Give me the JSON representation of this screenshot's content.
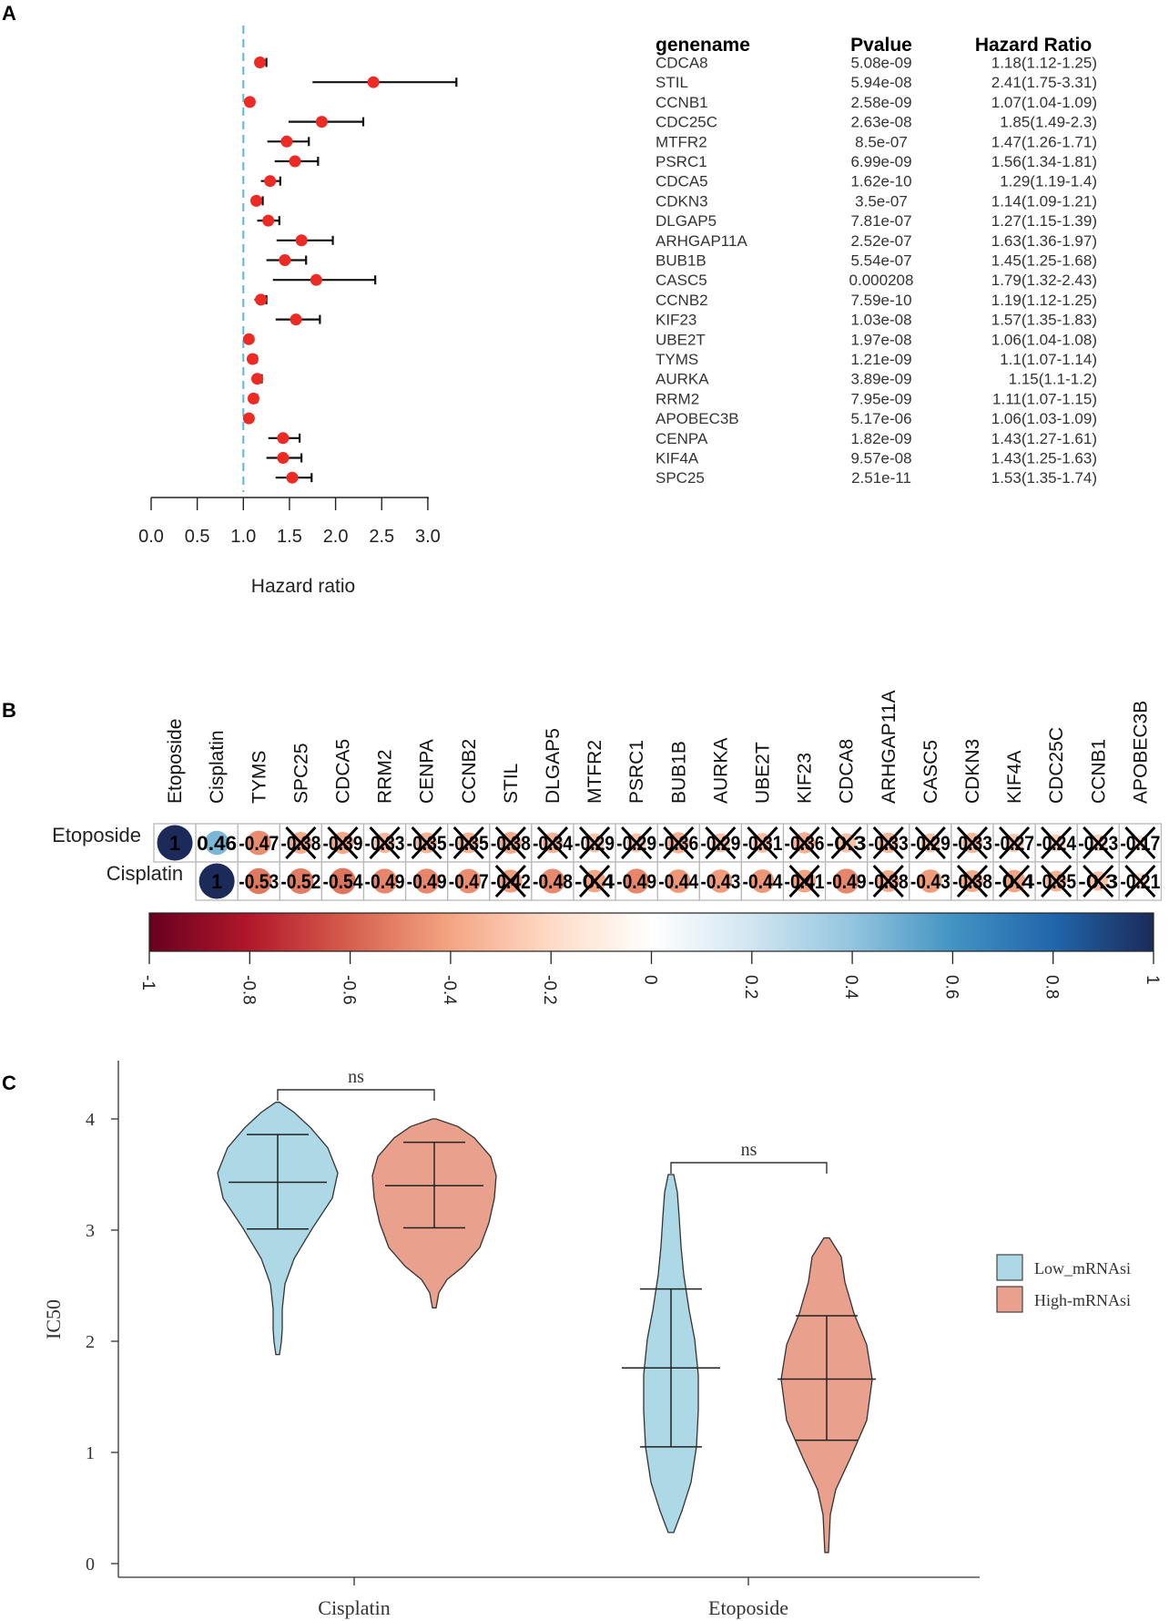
{
  "panel_labels": {
    "a": "A",
    "b": "B",
    "c": "C"
  },
  "chart_data": [
    {
      "type": "forest",
      "xlabel": "Hazard ratio",
      "xlim": [
        0,
        3
      ],
      "xticks": [
        "0.0",
        "0.5",
        "1.0",
        "1.5",
        "2.0",
        "2.5",
        "3.0"
      ],
      "reference_line": 1.0,
      "table_headers": {
        "gene": "genename",
        "p": "Pvalue",
        "hr": "Hazard Ratio"
      },
      "rows": [
        {
          "gene": "CDCA8",
          "p": "5.08e-09",
          "hr_text": "1.18(1.12-1.25)",
          "hr": 1.18,
          "lo": 1.12,
          "hi": 1.25
        },
        {
          "gene": "STIL",
          "p": "5.94e-08",
          "hr_text": "2.41(1.75-3.31)",
          "hr": 2.41,
          "lo": 1.75,
          "hi": 3.31
        },
        {
          "gene": "CCNB1",
          "p": "2.58e-09",
          "hr_text": "1.07(1.04-1.09)",
          "hr": 1.07,
          "lo": 1.04,
          "hi": 1.09
        },
        {
          "gene": "CDC25C",
          "p": "2.63e-08",
          "hr_text": "1.85(1.49-2.3)",
          "hr": 1.85,
          "lo": 1.49,
          "hi": 2.3
        },
        {
          "gene": "MTFR2",
          "p": "8.5e-07",
          "hr_text": "1.47(1.26-1.71)",
          "hr": 1.47,
          "lo": 1.26,
          "hi": 1.71
        },
        {
          "gene": "PSRC1",
          "p": "6.99e-09",
          "hr_text": "1.56(1.34-1.81)",
          "hr": 1.56,
          "lo": 1.34,
          "hi": 1.81
        },
        {
          "gene": "CDCA5",
          "p": "1.62e-10",
          "hr_text": "1.29(1.19-1.4)",
          "hr": 1.29,
          "lo": 1.19,
          "hi": 1.4
        },
        {
          "gene": "CDKN3",
          "p": "3.5e-07",
          "hr_text": "1.14(1.09-1.21)",
          "hr": 1.14,
          "lo": 1.09,
          "hi": 1.21
        },
        {
          "gene": "DLGAP5",
          "p": "7.81e-07",
          "hr_text": "1.27(1.15-1.39)",
          "hr": 1.27,
          "lo": 1.15,
          "hi": 1.39
        },
        {
          "gene": "ARHGAP11A",
          "p": "2.52e-07",
          "hr_text": "1.63(1.36-1.97)",
          "hr": 1.63,
          "lo": 1.36,
          "hi": 1.97
        },
        {
          "gene": "BUB1B",
          "p": "5.54e-07",
          "hr_text": "1.45(1.25-1.68)",
          "hr": 1.45,
          "lo": 1.25,
          "hi": 1.68
        },
        {
          "gene": "CASC5",
          "p": "0.000208",
          "hr_text": "1.79(1.32-2.43)",
          "hr": 1.79,
          "lo": 1.32,
          "hi": 2.43
        },
        {
          "gene": "CCNB2",
          "p": "7.59e-10",
          "hr_text": "1.19(1.12-1.25)",
          "hr": 1.19,
          "lo": 1.12,
          "hi": 1.25
        },
        {
          "gene": "KIF23",
          "p": "1.03e-08",
          "hr_text": "1.57(1.35-1.83)",
          "hr": 1.57,
          "lo": 1.35,
          "hi": 1.83
        },
        {
          "gene": "UBE2T",
          "p": "1.97e-08",
          "hr_text": "1.06(1.04-1.08)",
          "hr": 1.06,
          "lo": 1.04,
          "hi": 1.08
        },
        {
          "gene": "TYMS",
          "p": "1.21e-09",
          "hr_text": "1.1(1.07-1.14)",
          "hr": 1.1,
          "lo": 1.07,
          "hi": 1.14
        },
        {
          "gene": "AURKA",
          "p": "3.89e-09",
          "hr_text": "1.15(1.1-1.2)",
          "hr": 1.15,
          "lo": 1.1,
          "hi": 1.2
        },
        {
          "gene": "RRM2",
          "p": "7.95e-09",
          "hr_text": "1.11(1.07-1.15)",
          "hr": 1.11,
          "lo": 1.07,
          "hi": 1.15
        },
        {
          "gene": "APOBEC3B",
          "p": "5.17e-06",
          "hr_text": "1.06(1.03-1.09)",
          "hr": 1.06,
          "lo": 1.03,
          "hi": 1.09
        },
        {
          "gene": "CENPA",
          "p": "1.82e-09",
          "hr_text": "1.43(1.27-1.61)",
          "hr": 1.43,
          "lo": 1.27,
          "hi": 1.61
        },
        {
          "gene": "KIF4A",
          "p": "9.57e-08",
          "hr_text": "1.43(1.25-1.63)",
          "hr": 1.43,
          "lo": 1.25,
          "hi": 1.63
        },
        {
          "gene": "SPC25",
          "p": "2.51e-11",
          "hr_text": "1.53(1.35-1.74)",
          "hr": 1.53,
          "lo": 1.35,
          "hi": 1.74
        }
      ]
    },
    {
      "type": "heatmap",
      "columns": [
        "Etoposide",
        "Cisplatin",
        "TYMS",
        "SPC25",
        "CDCA5",
        "RRM2",
        "CENPA",
        "CCNB2",
        "STIL",
        "DLGAP5",
        "MTFR2",
        "PSRC1",
        "BUB1B",
        "AURKA",
        "UBE2T",
        "KIF23",
        "CDCA8",
        "ARHGAP11A",
        "CASC5",
        "CDKN3",
        "KIF4A",
        "CDC25C",
        "CCNB1",
        "APOBEC3B"
      ],
      "rows": [
        {
          "name": "Etoposide",
          "start_col": 0,
          "values": [
            1,
            0.46,
            -0.47,
            -0.38,
            -0.39,
            -0.33,
            -0.35,
            -0.35,
            -0.38,
            -0.34,
            -0.29,
            -0.29,
            -0.36,
            -0.29,
            -0.31,
            -0.36,
            -0.3,
            -0.33,
            -0.29,
            -0.33,
            -0.27,
            -0.24,
            -0.23,
            -0.17
          ],
          "labels": [
            "1",
            "0.46",
            "-0.47",
            "-0.38",
            "-0.39",
            "-0.33",
            "-0.35",
            "-0.35",
            "-0.38",
            "-0.34",
            "-0.29",
            "-0.29",
            "-0.36",
            "-0.29",
            "-0.31",
            "-0.36",
            "-0.3",
            "-0.33",
            "-0.29",
            "-0.33",
            "-0.27",
            "-0.24",
            "-0.23",
            "-0.17"
          ],
          "crossed": [
            false,
            false,
            false,
            true,
            true,
            true,
            true,
            true,
            true,
            true,
            true,
            true,
            true,
            true,
            true,
            true,
            true,
            true,
            true,
            true,
            true,
            true,
            true,
            true
          ]
        },
        {
          "name": "Cisplatin",
          "start_col": 1,
          "values": [
            1,
            -0.53,
            -0.52,
            -0.54,
            -0.49,
            -0.49,
            -0.47,
            -0.42,
            -0.48,
            -0.4,
            -0.49,
            -0.44,
            -0.43,
            -0.44,
            -0.41,
            -0.49,
            -0.38,
            -0.43,
            -0.38,
            -0.4,
            -0.35,
            -0.3,
            -0.21
          ],
          "labels": [
            "1",
            "-0.53",
            "-0.52",
            "-0.54",
            "-0.49",
            "-0.49",
            "-0.47",
            "-0.42",
            "-0.48",
            "-0.4",
            "-0.49",
            "-0.44",
            "-0.43",
            "-0.44",
            "-0.41",
            "-0.49",
            "-0.38",
            "-0.43",
            "-0.38",
            "-0.4",
            "-0.35",
            "-0.3",
            "-0.21"
          ],
          "crossed": [
            false,
            false,
            false,
            false,
            false,
            false,
            false,
            true,
            false,
            true,
            false,
            false,
            false,
            false,
            true,
            false,
            true,
            false,
            true,
            true,
            true,
            true,
            true
          ]
        }
      ],
      "colorbar": {
        "range": [
          -1,
          1
        ],
        "ticks": [
          "-1",
          "-0.8",
          "-0.6",
          "-0.4",
          "-0.2",
          "0",
          "0.2",
          "0.4",
          "0.6",
          "0.8",
          "1"
        ]
      }
    },
    {
      "type": "violin",
      "ylabel": "IC50",
      "ylim": [
        0,
        4.4
      ],
      "yticks": [
        "0",
        "1",
        "2",
        "3",
        "4"
      ],
      "categories": [
        "Cisplatin",
        "Etoposide"
      ],
      "series": [
        {
          "name": "Low_mRNAsi",
          "color": "#add8e6",
          "stats": [
            {
              "min": 1.88,
              "q1": 3.01,
              "median": 3.43,
              "q3": 3.86,
              "max": 4.15
            },
            {
              "min": 0.28,
              "q1": 1.05,
              "median": 1.76,
              "q3": 2.47,
              "max": 3.5
            }
          ]
        },
        {
          "name": "High-mRNAsi",
          "color": "#e9a08c",
          "stats": [
            {
              "min": 2.3,
              "q1": 3.02,
              "median": 3.4,
              "q3": 3.79,
              "max": 4.0
            },
            {
              "min": 0.1,
              "q1": 1.11,
              "median": 1.66,
              "q3": 2.23,
              "max": 2.93
            }
          ]
        }
      ],
      "significance": [
        "ns",
        "ns"
      ],
      "legend_position": "right"
    }
  ]
}
